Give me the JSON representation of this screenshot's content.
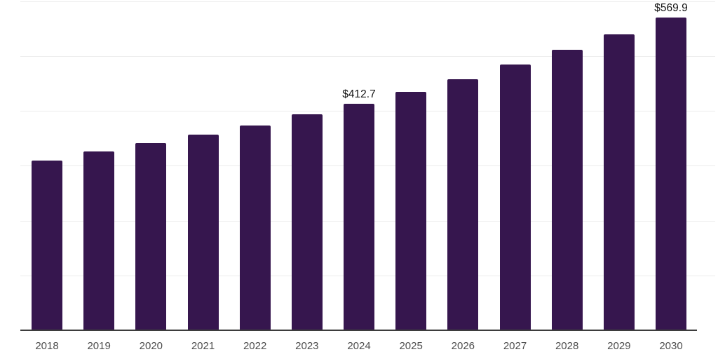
{
  "chart_data": {
    "type": "bar",
    "title": "",
    "xlabel": "",
    "ylabel": "",
    "categories": [
      "2018",
      "2019",
      "2020",
      "2021",
      "2022",
      "2023",
      "2024",
      "2025",
      "2026",
      "2027",
      "2028",
      "2029",
      "2030"
    ],
    "values": [
      309.0,
      325.5,
      341.0,
      356.5,
      373.0,
      393.5,
      412.7,
      434.0,
      457.5,
      484.0,
      511.0,
      539.5,
      569.9
    ],
    "data_labels": [
      "",
      "",
      "",
      "",
      "",
      "",
      "$412.7",
      "",
      "",
      "",
      "",
      "",
      "$569.9"
    ],
    "ylim": [
      0,
      600
    ],
    "gridline_values": [
      100,
      200,
      300,
      400,
      500,
      600
    ],
    "grid": true,
    "legend": false,
    "y_axis_tick_labels_visible": false,
    "colors": {
      "bar": "#36164E",
      "gridline": "#ececec",
      "axis_line": "#3d3d3d",
      "x_tick_label": "#4d4d4d",
      "data_label": "#141414",
      "background": "#ffffff"
    }
  }
}
